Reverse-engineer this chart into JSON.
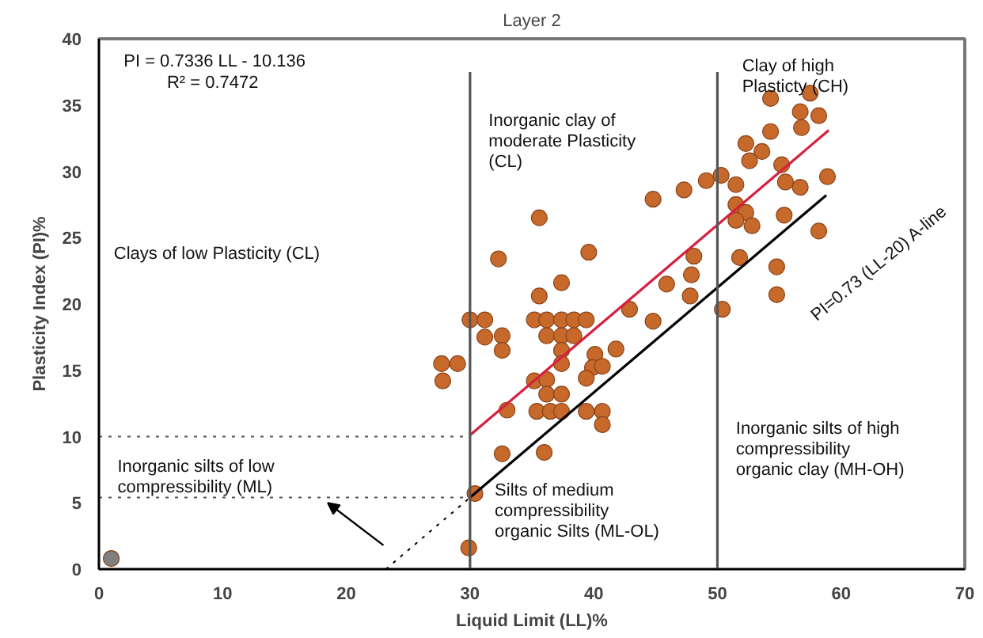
{
  "chart_data": {
    "type": "scatter",
    "title": "Layer 2",
    "xlabel": "Liquid Limit (LL)%",
    "ylabel": "Plasticity Index (PI)%",
    "xlim": [
      0,
      70
    ],
    "ylim": [
      0,
      40
    ],
    "xticks": [
      0,
      10,
      20,
      30,
      40,
      50,
      60,
      70
    ],
    "yticks": [
      0,
      5,
      10,
      15,
      20,
      25,
      30,
      35,
      40
    ],
    "grid": false,
    "series": [
      {
        "color": "#c8692c",
        "marker": "circle",
        "x": [
          27.7,
          29.0,
          27.8,
          30.0,
          31.2,
          31.2,
          32.6,
          32.6,
          35.2,
          36.2,
          37.4,
          38.4,
          39.4,
          36.2,
          37.4,
          38.4,
          37.4,
          37.4,
          40.1,
          39.9,
          40.7,
          39.4,
          35.2,
          36.2,
          36.2,
          37.4,
          33.0,
          35.4,
          36.5,
          37.4,
          39.4,
          40.7,
          40.7,
          32.6,
          36.0,
          30.4,
          29.9,
          41.8,
          42.9,
          44.8,
          47.8,
          50.4,
          35.6,
          35.6,
          32.3,
          39.6,
          37.4,
          44.8,
          47.3,
          49.1,
          50.3,
          48.1,
          47.9,
          45.9,
          54.3,
          57.5,
          56.7,
          58.2,
          56.8,
          54.3,
          52.3,
          53.6,
          52.6,
          55.2,
          51.5,
          55.5,
          56.7,
          58.9,
          51.5,
          52.3,
          51.5,
          52.8,
          55.4,
          58.2,
          51.8,
          54.8,
          54.8
        ],
        "values": [
          15.5,
          15.5,
          14.2,
          18.8,
          18.8,
          17.5,
          17.6,
          16.5,
          18.8,
          18.8,
          18.8,
          18.8,
          18.8,
          17.6,
          17.6,
          17.6,
          16.5,
          15.5,
          16.2,
          15.2,
          15.3,
          14.4,
          14.2,
          14.3,
          13.2,
          13.2,
          12.0,
          11.9,
          11.9,
          11.9,
          11.9,
          11.9,
          10.9,
          8.7,
          8.8,
          5.7,
          1.6,
          16.6,
          19.6,
          18.7,
          20.6,
          19.6,
          20.6,
          26.5,
          23.4,
          23.9,
          21.6,
          27.9,
          28.6,
          29.3,
          29.7,
          23.6,
          22.2,
          21.5,
          35.5,
          35.9,
          34.5,
          34.2,
          33.3,
          33.0,
          32.1,
          31.5,
          30.8,
          30.5,
          29.0,
          29.2,
          28.8,
          29.6,
          27.5,
          26.9,
          26.3,
          25.9,
          26.7,
          25.5,
          23.5,
          22.8,
          20.7
        ]
      },
      {
        "color": "#808080",
        "marker": "circle",
        "x": [
          1.0
        ],
        "values": [
          0.8
        ]
      },
      {
        "type": "line",
        "color": "#d6203e",
        "line_style": "solid",
        "x": [
          30,
          59
        ],
        "values": [
          10.1,
          33.1
        ]
      },
      {
        "type": "line",
        "color": "#000000",
        "line_style": "solid",
        "x": [
          30,
          58.8
        ],
        "values": [
          5.4,
          28.2
        ]
      },
      {
        "type": "line",
        "color": "#000000",
        "line_style": "dotted",
        "x": [
          23.2,
          30
        ],
        "values": [
          0,
          5.4
        ]
      },
      {
        "type": "line",
        "color": "#555555",
        "line_style": "dotted",
        "x": [
          0,
          30
        ],
        "values": [
          10,
          10
        ]
      },
      {
        "type": "line",
        "color": "#555555",
        "line_style": "dotted",
        "x": [
          0,
          30
        ],
        "values": [
          5.4,
          5.4
        ]
      },
      {
        "type": "line",
        "color": "#555555",
        "line_style": "solid",
        "x": [
          30,
          30
        ],
        "values": [
          0,
          37.5
        ]
      },
      {
        "type": "line",
        "color": "#555555",
        "line_style": "solid",
        "x": [
          50,
          50
        ],
        "values": [
          0,
          37.5
        ]
      }
    ],
    "annotations": [
      "PI = 0.7336 LL - 10.136",
      "R² = 0.7472",
      "Clays of low Plasticity (CL)",
      "Inorganic silts of low\ncompressibility (ML)",
      "Inorganic clay of\nmoderate Plasticity\n(CL)",
      "Clay of high\nPlasticty (CH)",
      "Silts of medium\ncompressibility\norganic Silts (ML-OL)",
      "PI=0.73 (LL-20) A-line",
      "Inorganic silts of high\ncompressibility\norganic clay (MH-OH)"
    ]
  }
}
